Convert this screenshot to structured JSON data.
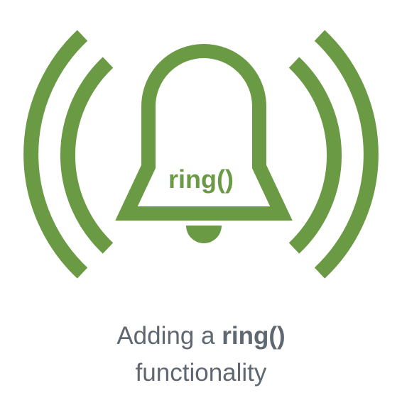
{
  "colors": {
    "accent": "#6b9a45",
    "caption_text": "#5f6770",
    "background": "#ffffff"
  },
  "icon": {
    "name": "bell-ringing-icon",
    "label": "ring()"
  },
  "caption": {
    "line1_prefix": "Adding a",
    "line1_code": "ring()",
    "line2": "functionality"
  }
}
